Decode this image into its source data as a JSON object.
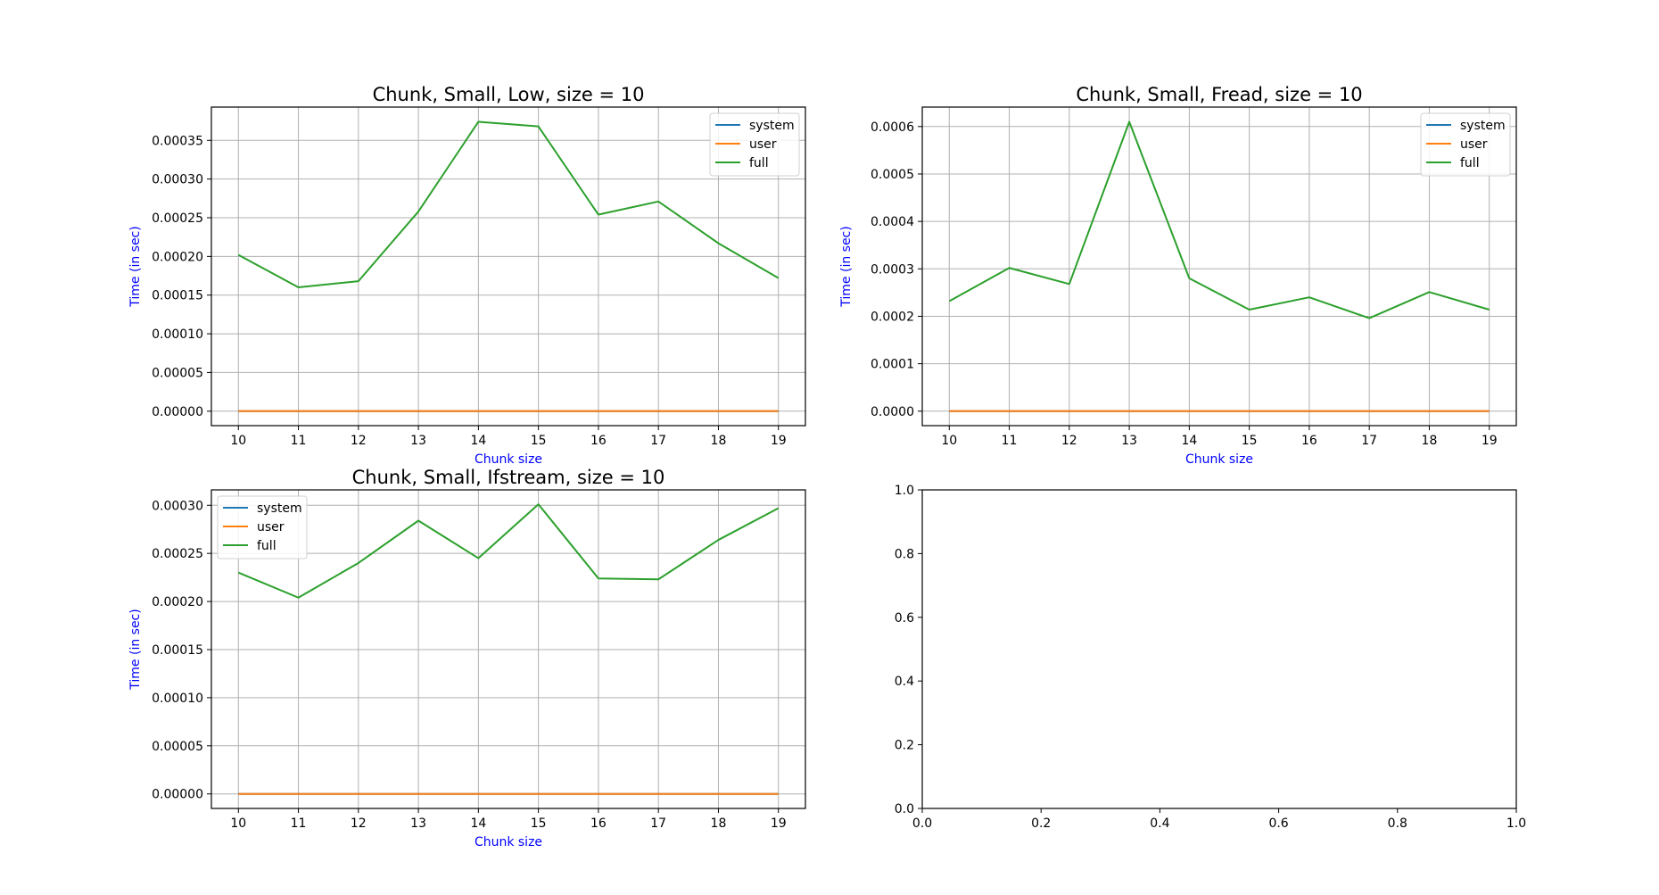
{
  "chart_data": [
    {
      "type": "line",
      "title": "Chunk, Small, Low, size = 10",
      "xlabel": "Chunk size",
      "ylabel": "Time (in sec)",
      "x": [
        10,
        11,
        12,
        13,
        14,
        15,
        16,
        17,
        18,
        19
      ],
      "xticks": [
        "10",
        "11",
        "12",
        "13",
        "14",
        "15",
        "16",
        "17",
        "18",
        "19"
      ],
      "ylim": [
        -1.87e-05,
        0.000393
      ],
      "yticks": [
        0,
        5e-05,
        0.0001,
        0.00015,
        0.0002,
        0.00025,
        0.0003,
        0.00035
      ],
      "ytick_labels": [
        "0.00000",
        "0.00005",
        "0.00010",
        "0.00015",
        "0.00020",
        "0.00025",
        "0.00030",
        "0.00035"
      ],
      "grid": true,
      "legend": "upper right",
      "series": [
        {
          "name": "system",
          "color": "#1f77b4",
          "values": [
            0,
            0,
            0,
            0,
            0,
            0,
            0,
            0,
            0,
            0
          ]
        },
        {
          "name": "user",
          "color": "#ff7f0e",
          "values": [
            0,
            0,
            0,
            0,
            0,
            0,
            0,
            0,
            0,
            0
          ]
        },
        {
          "name": "full",
          "color": "#2ca02c",
          "values": [
            0.000202,
            0.00016,
            0.000168,
            0.000258,
            0.000374,
            0.000368,
            0.000254,
            0.000271,
            0.000217,
            0.000172
          ]
        }
      ]
    },
    {
      "type": "line",
      "title": "Chunk, Small, Fread, size = 10",
      "xlabel": "Chunk size",
      "ylabel": "Time (in sec)",
      "x": [
        10,
        11,
        12,
        13,
        14,
        15,
        16,
        17,
        18,
        19
      ],
      "xticks": [
        "10",
        "11",
        "12",
        "13",
        "14",
        "15",
        "16",
        "17",
        "18",
        "19"
      ],
      "ylim": [
        -3.05e-05,
        0.000641
      ],
      "yticks": [
        0,
        0.0001,
        0.0002,
        0.0003,
        0.0004,
        0.0005,
        0.0006
      ],
      "ytick_labels": [
        "0.0000",
        "0.0001",
        "0.0002",
        "0.0003",
        "0.0004",
        "0.0005",
        "0.0006"
      ],
      "grid": true,
      "legend": "upper right",
      "series": [
        {
          "name": "system",
          "color": "#1f77b4",
          "values": [
            0,
            0,
            0,
            0,
            0,
            0,
            0,
            0,
            0,
            0
          ]
        },
        {
          "name": "user",
          "color": "#ff7f0e",
          "values": [
            0,
            0,
            0,
            0,
            0,
            0,
            0,
            0,
            0,
            0
          ]
        },
        {
          "name": "full",
          "color": "#2ca02c",
          "values": [
            0.000232,
            0.000302,
            0.000268,
            0.00061,
            0.00028,
            0.000214,
            0.00024,
            0.000196,
            0.000251,
            0.000214
          ]
        }
      ]
    },
    {
      "type": "line",
      "title": "Chunk, Small, Ifstream, size = 10",
      "xlabel": "Chunk size",
      "ylabel": "Time (in sec)",
      "x": [
        10,
        11,
        12,
        13,
        14,
        15,
        16,
        17,
        18,
        19
      ],
      "xticks": [
        "10",
        "11",
        "12",
        "13",
        "14",
        "15",
        "16",
        "17",
        "18",
        "19"
      ],
      "ylim": [
        -1.51e-05,
        0.000316
      ],
      "yticks": [
        0,
        5e-05,
        0.0001,
        0.00015,
        0.0002,
        0.00025,
        0.0003
      ],
      "ytick_labels": [
        "0.00000",
        "0.00005",
        "0.00010",
        "0.00015",
        "0.00020",
        "0.00025",
        "0.00030"
      ],
      "grid": true,
      "legend": "upper left",
      "series": [
        {
          "name": "system",
          "color": "#1f77b4",
          "values": [
            0,
            0,
            0,
            0,
            0,
            0,
            0,
            0,
            0,
            0
          ]
        },
        {
          "name": "user",
          "color": "#ff7f0e",
          "values": [
            0,
            0,
            0,
            0,
            0,
            0,
            0,
            0,
            0,
            0
          ]
        },
        {
          "name": "full",
          "color": "#2ca02c",
          "values": [
            0.00023,
            0.000204,
            0.00024,
            0.000284,
            0.000245,
            0.000301,
            0.000224,
            0.000223,
            0.000264,
            0.000297
          ]
        }
      ]
    },
    {
      "type": "line",
      "title": "",
      "xlabel": "",
      "ylabel": "",
      "xlim": [
        0,
        1
      ],
      "ylim": [
        0,
        1
      ],
      "xticks": [
        0,
        0.2,
        0.4,
        0.6,
        0.8,
        1.0
      ],
      "xtick_labels": [
        "0.0",
        "0.2",
        "0.4",
        "0.6",
        "0.8",
        "1.0"
      ],
      "yticks": [
        0,
        0.2,
        0.4,
        0.6,
        0.8,
        1.0
      ],
      "ytick_labels": [
        "0.0",
        "0.2",
        "0.4",
        "0.6",
        "0.8",
        "1.0"
      ],
      "grid": false,
      "series": []
    }
  ]
}
